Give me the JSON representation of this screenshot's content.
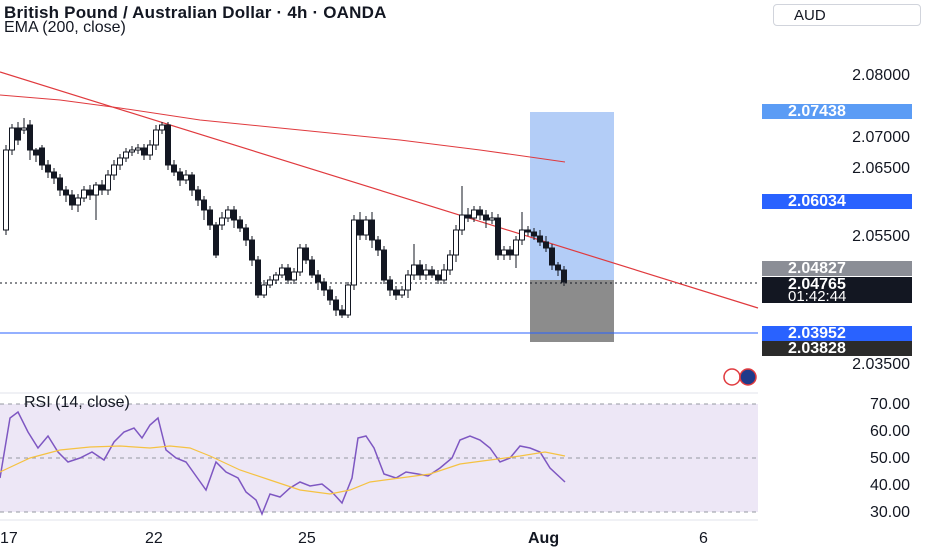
{
  "header": {
    "title": "British Pound / Australian Dollar · 4h · OANDA",
    "indicator": "EMA (200, close)",
    "currency": "AUD"
  },
  "price_axis": {
    "labels": [
      "2.08000",
      "2.07000",
      "2.06500",
      "2.05500",
      "2.03500"
    ],
    "tags": {
      "top_target": "2.07438",
      "entry": "2.06034",
      "high_marker": "2.04827",
      "current_price": "2.04765",
      "countdown": "01:42:44",
      "support": "2.03952",
      "stop": "2.03828"
    }
  },
  "rsi": {
    "title": "RSI (14, close)",
    "labels": [
      "70.00",
      "60.00",
      "50.00",
      "40.00",
      "30.00"
    ]
  },
  "time_axis": {
    "labels": [
      "17",
      "22",
      "25",
      "Aug",
      "6"
    ]
  },
  "colors": {
    "up": "#ffffff",
    "down": "#131722",
    "ema": "#e03a3e",
    "trendline": "#e03a3e",
    "rsi_line": "#7e57c2",
    "rsi_ma": "#f5c242",
    "rsi_band": "#ede7f6",
    "support_line": "#2962ff",
    "target_zone": "#b3cdf7",
    "stop_zone": "#8c8c8c",
    "tag_blue": "#2962ff",
    "tag_dark": "#131722",
    "tag_grey": "#8b8e96"
  }
}
